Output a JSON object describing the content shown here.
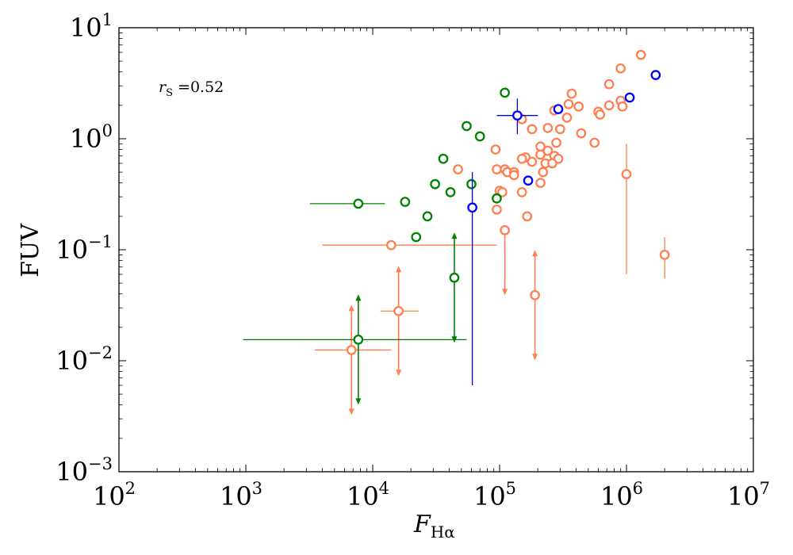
{
  "chart_data": {
    "type": "scatter",
    "xscale": "log",
    "yscale": "log",
    "xlim": [
      100,
      10000000
    ],
    "ylim": [
      0.001,
      10
    ],
    "x_ticks": [
      {
        "base": "10",
        "exp": "2",
        "value": 100
      },
      {
        "base": "10",
        "exp": "3",
        "value": 1000
      },
      {
        "base": "10",
        "exp": "4",
        "value": 10000
      },
      {
        "base": "10",
        "exp": "5",
        "value": 100000
      },
      {
        "base": "10",
        "exp": "6",
        "value": 1000000
      },
      {
        "base": "10",
        "exp": "7",
        "value": 10000000
      }
    ],
    "y_ticks": [
      {
        "base": "10",
        "exp": "−3",
        "value": 0.001
      },
      {
        "base": "10",
        "exp": "−2",
        "value": 0.01
      },
      {
        "base": "10",
        "exp": "−1",
        "value": 0.1
      },
      {
        "base": "10",
        "exp": "0",
        "value": 1
      },
      {
        "base": "10",
        "exp": "1",
        "value": 10
      }
    ],
    "xlabel": {
      "main": "F",
      "sub": "Hα"
    },
    "ylabel": "FUV",
    "annotation": {
      "main": "r",
      "sub": "S",
      "rest": " =0.52"
    },
    "series": [
      {
        "name": "orange",
        "color": "#ff7f50",
        "points": [
          {
            "x": 1300000,
            "y": 5.7
          },
          {
            "x": 900000,
            "y": 4.3
          },
          {
            "x": 730000,
            "y": 3.1
          },
          {
            "x": 370000,
            "y": 2.55
          },
          {
            "x": 900000,
            "y": 2.2
          },
          {
            "x": 350000,
            "y": 2.05
          },
          {
            "x": 730000,
            "y": 2.0
          },
          {
            "x": 420000,
            "y": 1.95
          },
          {
            "x": 930000,
            "y": 1.95
          },
          {
            "x": 270000,
            "y": 1.8
          },
          {
            "x": 600000,
            "y": 1.75
          },
          {
            "x": 620000,
            "y": 1.65
          },
          {
            "x": 340000,
            "y": 1.55
          },
          {
            "x": 150000,
            "y": 1.5
          },
          {
            "x": 240000,
            "y": 1.25
          },
          {
            "x": 180000,
            "y": 1.22
          },
          {
            "x": 300000,
            "y": 1.22
          },
          {
            "x": 440000,
            "y": 1.12
          },
          {
            "x": 280000,
            "y": 0.92
          },
          {
            "x": 560000,
            "y": 0.92
          },
          {
            "x": 210000,
            "y": 0.85
          },
          {
            "x": 93000,
            "y": 0.8
          },
          {
            "x": 240000,
            "y": 0.78
          },
          {
            "x": 210000,
            "y": 0.72
          },
          {
            "x": 270000,
            "y": 0.7
          },
          {
            "x": 160000,
            "y": 0.68
          },
          {
            "x": 150000,
            "y": 0.66
          },
          {
            "x": 290000,
            "y": 0.66
          },
          {
            "x": 180000,
            "y": 0.62
          },
          {
            "x": 230000,
            "y": 0.6
          },
          {
            "x": 260000,
            "y": 0.6
          },
          {
            "x": 95000,
            "y": 0.53
          },
          {
            "x": 47000,
            "y": 0.53
          },
          {
            "x": 110000,
            "y": 0.53
          },
          {
            "x": 115000,
            "y": 0.5
          },
          {
            "x": 130000,
            "y": 0.5
          },
          {
            "x": 220000,
            "y": 0.5
          },
          {
            "x": 1000000,
            "y": 0.48,
            "yerr": [
              0.06,
              0.9
            ]
          },
          {
            "x": 130000,
            "y": 0.47
          },
          {
            "x": 210000,
            "y": 0.4
          },
          {
            "x": 100000,
            "y": 0.34
          },
          {
            "x": 105000,
            "y": 0.33
          },
          {
            "x": 150000,
            "y": 0.33
          },
          {
            "x": 95000,
            "y": 0.23
          },
          {
            "x": 165000,
            "y": 0.2
          },
          {
            "x": 110000,
            "y": 0.15,
            "arrow": "down"
          },
          {
            "x": 14000,
            "y": 0.11,
            "xerr": [
              4000,
              95000
            ]
          },
          {
            "x": 2000000,
            "y": 0.09,
            "yerr": [
              0.055,
              0.13
            ]
          },
          {
            "x": 190000,
            "y": 0.039,
            "arrow": "updown"
          },
          {
            "x": 16000,
            "y": 0.028,
            "xerr": [
              11500,
              23000
            ],
            "arrow": "updown"
          },
          {
            "x": 6800,
            "y": 0.0125,
            "xerr": [
              3500,
              14000
            ],
            "arrow": "updown"
          }
        ]
      },
      {
        "name": "green",
        "color": "#008000",
        "points": [
          {
            "x": 110000,
            "y": 2.6
          },
          {
            "x": 55000,
            "y": 1.3
          },
          {
            "x": 70000,
            "y": 1.05
          },
          {
            "x": 36000,
            "y": 0.66
          },
          {
            "x": 31000,
            "y": 0.39
          },
          {
            "x": 60000,
            "y": 0.39
          },
          {
            "x": 41000,
            "y": 0.33
          },
          {
            "x": 7700,
            "y": 0.26,
            "xerr": [
              3200,
              12500
            ]
          },
          {
            "x": 18000,
            "y": 0.27
          },
          {
            "x": 27000,
            "y": 0.2
          },
          {
            "x": 22000,
            "y": 0.13
          },
          {
            "x": 95000,
            "y": 0.29
          },
          {
            "x": 44000,
            "y": 0.056,
            "arrow": "updown"
          },
          {
            "x": 7700,
            "y": 0.0155,
            "xerr": [
              950,
              55000
            ],
            "arrow": "updown"
          }
        ]
      },
      {
        "name": "blue",
        "color": "#0000ff",
        "points": [
          {
            "x": 1700000,
            "y": 3.75
          },
          {
            "x": 1060000,
            "y": 2.35
          },
          {
            "x": 290000,
            "y": 1.85
          },
          {
            "x": 138000,
            "y": 1.62,
            "xerr": [
              95000,
              200000
            ],
            "yerr": [
              1.1,
              2.3
            ]
          },
          {
            "x": 168000,
            "y": 0.42
          },
          {
            "x": 61000,
            "y": 0.24,
            "yerr": [
              0.006,
              0.5
            ]
          }
        ]
      }
    ]
  }
}
